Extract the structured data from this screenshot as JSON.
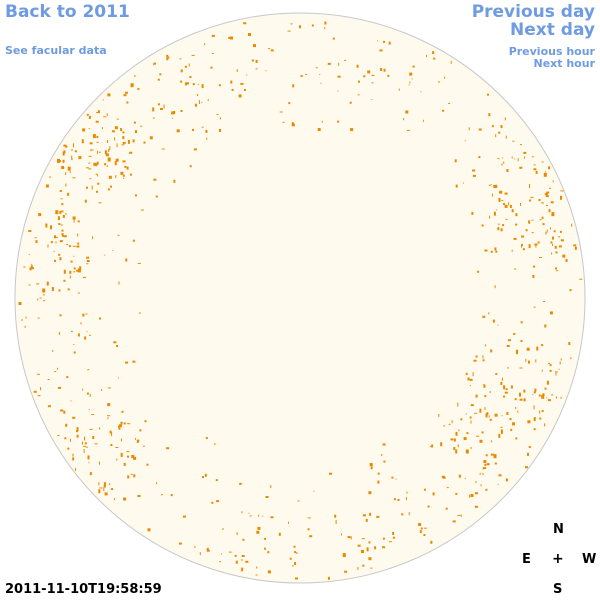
{
  "nav": {
    "back_label": "Back to 2011",
    "facular_label": "See facular data",
    "previous_day_label": "Previous day",
    "next_day_label": "Next day",
    "previous_hour_label": "Previous hour",
    "next_hour_label": "Next hour"
  },
  "compass": {
    "north": "N",
    "east": "E",
    "center": "+",
    "west": "W",
    "south": "S"
  },
  "timestamp": "2011-11-10T19:58:59",
  "colors": {
    "link": "#6f9be0",
    "disk_fill": "#fffaee",
    "disk_outline": "#c8c8c8",
    "facula": "#e88a00"
  },
  "icons": {
    "solar_disk": "solar-disk-image"
  }
}
